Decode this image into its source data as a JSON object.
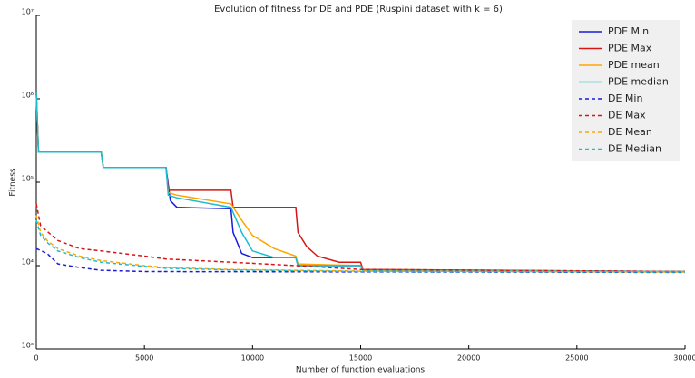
{
  "chart_data": {
    "type": "line",
    "title": "Evolution of fitness for DE and PDE (Ruspini dataset with k = 6)",
    "x_label": "Number of function evaluations",
    "y_label": "Fitness",
    "y_scale": "log",
    "xlim": [
      0,
      30000
    ],
    "xticks": [
      0,
      5000,
      10000,
      15000,
      20000,
      25000,
      30000
    ],
    "ylim": [
      1000,
      10000000
    ],
    "yticks": [
      {
        "value": 1000,
        "label": "10³"
      },
      {
        "value": 10000,
        "label": "10⁴"
      },
      {
        "value": 100000,
        "label": "10⁵"
      },
      {
        "value": 1000000,
        "label": "10⁶"
      },
      {
        "value": 10000000,
        "label": "10⁷"
      }
    ],
    "legend": "upper right",
    "series": [
      {
        "name": "PDE Min",
        "color": "#1a1adb",
        "linestyle": "solid",
        "x": [
          0,
          100,
          3000,
          3100,
          6000,
          6200,
          6500,
          9000,
          9100,
          9500,
          10000,
          12000,
          12100,
          15000,
          15100,
          30000
        ],
        "values": [
          1200000,
          230000,
          230000,
          150000,
          150000,
          60000,
          50000,
          48000,
          25000,
          14000,
          12500,
          12500,
          10000,
          10000,
          8800,
          8500
        ]
      },
      {
        "name": "PDE Max",
        "color": "#d71515",
        "linestyle": "solid",
        "x": [
          0,
          100,
          3000,
          3100,
          6000,
          6100,
          9000,
          9100,
          12000,
          12100,
          12500,
          13000,
          14000,
          15000,
          15100,
          30000
        ],
        "values": [
          1200000,
          230000,
          230000,
          150000,
          150000,
          80000,
          80000,
          50000,
          50000,
          25000,
          17000,
          13000,
          11000,
          11000,
          9000,
          8500
        ]
      },
      {
        "name": "PDE mean",
        "color": "#ffa500",
        "linestyle": "solid",
        "x": [
          0,
          100,
          3000,
          3100,
          6000,
          6100,
          6500,
          9000,
          9500,
          10000,
          11000,
          12000,
          12100,
          15000,
          15100,
          30000
        ],
        "values": [
          1200000,
          230000,
          230000,
          150000,
          150000,
          75000,
          70000,
          55000,
          35000,
          23000,
          16000,
          13000,
          10500,
          10000,
          8800,
          8500
        ]
      },
      {
        "name": "PDE median",
        "color": "#17becf",
        "linestyle": "solid",
        "x": [
          0,
          100,
          3000,
          3100,
          6000,
          6100,
          6500,
          9000,
          9500,
          10000,
          11000,
          12000,
          12100,
          15000,
          15100,
          30000
        ],
        "values": [
          1200000,
          230000,
          230000,
          150000,
          150000,
          70000,
          65000,
          50000,
          25000,
          15000,
          12500,
          12500,
          10000,
          10000,
          8800,
          8500
        ]
      },
      {
        "name": "DE Min",
        "color": "#1a1adb",
        "linestyle": "dashed",
        "x": [
          0,
          500,
          1000,
          2000,
          3000,
          5000,
          30000
        ],
        "values": [
          16000,
          14000,
          10500,
          9500,
          8800,
          8500,
          8300
        ]
      },
      {
        "name": "DE Max",
        "color": "#d71515",
        "linestyle": "dashed",
        "x": [
          0,
          200,
          1000,
          2000,
          3000,
          5000,
          6000,
          9000,
          12000,
          15000,
          30000
        ],
        "values": [
          55000,
          30000,
          20000,
          16000,
          15000,
          13000,
          12000,
          11000,
          10000,
          9000,
          8500
        ]
      },
      {
        "name": "DE Mean",
        "color": "#ffa500",
        "linestyle": "dashed",
        "x": [
          0,
          200,
          500,
          1000,
          2000,
          3000,
          5000,
          6000,
          9000,
          12000,
          15000,
          30000
        ],
        "values": [
          40000,
          25000,
          20000,
          16000,
          13000,
          11500,
          10000,
          9500,
          9000,
          8800,
          8600,
          8400
        ]
      },
      {
        "name": "DE Median",
        "color": "#17becf",
        "linestyle": "dashed",
        "x": [
          0,
          200,
          500,
          1000,
          2000,
          3000,
          5000,
          6000,
          9000,
          12000,
          15000,
          30000
        ],
        "values": [
          35000,
          23000,
          19000,
          15000,
          12500,
          11000,
          9800,
          9300,
          8900,
          8700,
          8500,
          8400
        ]
      }
    ]
  }
}
